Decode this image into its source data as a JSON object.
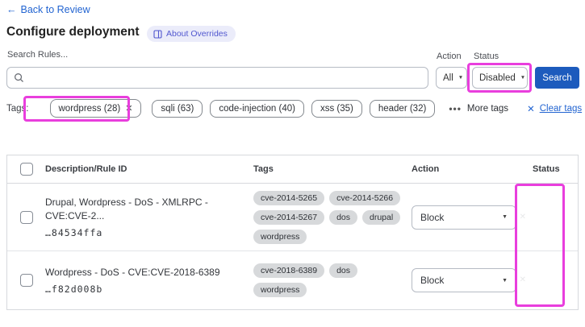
{
  "header": {
    "back_arrow": "←",
    "back_label": "Back to Review",
    "title": "Configure deployment",
    "about_badge": "About Overrides"
  },
  "filters": {
    "search_label": "Search Rules...",
    "search_value": "",
    "action_label": "Action",
    "action_value": "All",
    "status_label": "Status",
    "status_value": "Disabled",
    "search_button": "Search",
    "caret": "▼"
  },
  "tags_bar": {
    "label": "Tags:",
    "selected_tag": "wordpress (28)",
    "remove_icon": "✕",
    "tags": [
      "sqli (63)",
      "code-injection (40)",
      "xss (35)",
      "header (32)"
    ],
    "more_dots": "•••",
    "more_tags": "More tags",
    "clear_icon": "✕",
    "clear_tags": "Clear tags"
  },
  "table": {
    "columns": {
      "description": "Description/Rule ID",
      "tags": "Tags",
      "action": "Action",
      "status": "Status"
    },
    "rows": [
      {
        "description": "Drupal, Wordpress - DoS - XMLRPC - CVE:CVE-2...",
        "rule_id": "…84534ffa",
        "tags": [
          "cve-2014-5265",
          "cve-2014-5266",
          "cve-2014-5267",
          "dos",
          "drupal",
          "wordpress"
        ],
        "action": "Block",
        "status": "off",
        "toggle_icon": "✕"
      },
      {
        "description": "Wordpress - DoS - CVE:CVE-2018-6389",
        "rule_id": "…f82d008b",
        "tags": [
          "cve-2018-6389",
          "dos",
          "wordpress"
        ],
        "action": "Block",
        "status": "off",
        "toggle_icon": "✕"
      }
    ]
  },
  "colors": {
    "highlight_pink": "#e93edd",
    "link_blue": "#2264d1",
    "button_blue": "#1d5bbd",
    "badge_bg": "#ebecfa",
    "badge_text": "#5157cf",
    "toggle_off_bg": "#43464c"
  }
}
